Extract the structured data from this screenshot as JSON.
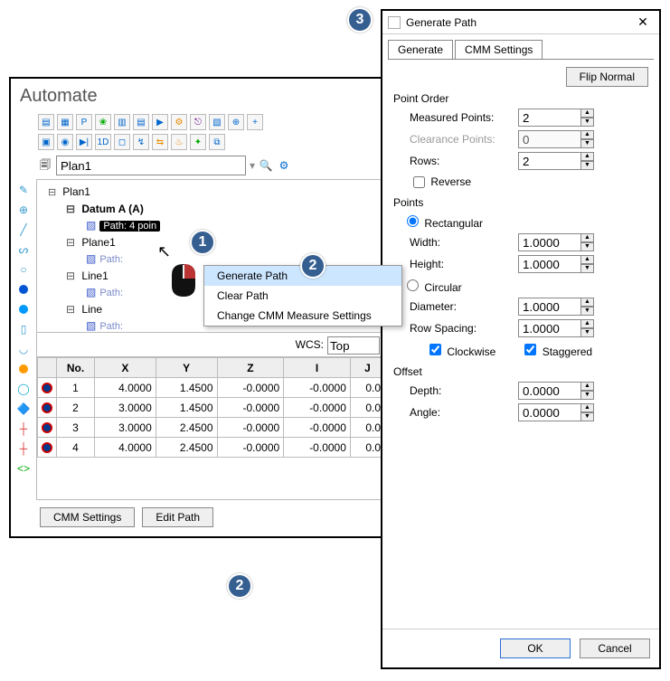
{
  "automate": {
    "title": "Automate",
    "plan_field": "Plan1",
    "tree": {
      "root": "Plan1",
      "nodes": [
        {
          "label": "Datum A (A)",
          "bold": true,
          "path_badge": "Path: 4 poin"
        },
        {
          "label": "Plane1",
          "path_label": "Path:"
        },
        {
          "label": "Line1",
          "path_label": "Path:"
        },
        {
          "label": "Line",
          "path_label": "Path:"
        }
      ]
    },
    "context_menu": {
      "items": [
        "Generate Path",
        "Clear Path",
        "Change CMM Measure Settings"
      ]
    },
    "grid": {
      "wcs_label": "WCS:",
      "wcs_value": "Top",
      "columns": [
        "",
        "No.",
        "X",
        "Y",
        "Z",
        "I",
        "J"
      ],
      "rows": [
        [
          "1",
          "4.0000",
          "1.4500",
          "-0.0000",
          "-0.0000",
          "0.0"
        ],
        [
          "2",
          "3.0000",
          "1.4500",
          "-0.0000",
          "-0.0000",
          "0.0"
        ],
        [
          "3",
          "3.0000",
          "2.4500",
          "-0.0000",
          "-0.0000",
          "0.0"
        ],
        [
          "4",
          "4.0000",
          "2.4500",
          "-0.0000",
          "-0.0000",
          "0.0"
        ]
      ]
    },
    "buttons": {
      "cmm": "CMM Settings",
      "edit": "Edit Path"
    }
  },
  "dialog": {
    "title": "Generate Path",
    "tabs": [
      "Generate",
      "CMM Settings"
    ],
    "flip": "Flip Normal",
    "groups": {
      "point_order": {
        "title": "Point Order",
        "measured_label": "Measured Points:",
        "measured": "2",
        "clearance_label": "Clearance Points:",
        "clearance": "0",
        "rows_label": "Rows:",
        "rows": "2",
        "reverse_label": "Reverse"
      },
      "points": {
        "title": "Points",
        "rect_label": "Rectangular",
        "width_label": "Width:",
        "width": "1.0000",
        "height_label": "Height:",
        "height": "1.0000",
        "circ_label": "Circular",
        "diameter_label": "Diameter:",
        "diameter": "1.0000",
        "rowsp_label": "Row Spacing:",
        "rowsp": "1.0000",
        "clockwise": "Clockwise",
        "staggered": "Staggered"
      },
      "offset": {
        "title": "Offset",
        "depth_label": "Depth:",
        "depth": "0.0000",
        "angle_label": "Angle:",
        "angle": "0.0000"
      }
    },
    "ok": "OK",
    "cancel": "Cancel"
  },
  "annotations": {
    "c1": "1",
    "c2": "2",
    "c2b": "2",
    "c3": "3"
  }
}
